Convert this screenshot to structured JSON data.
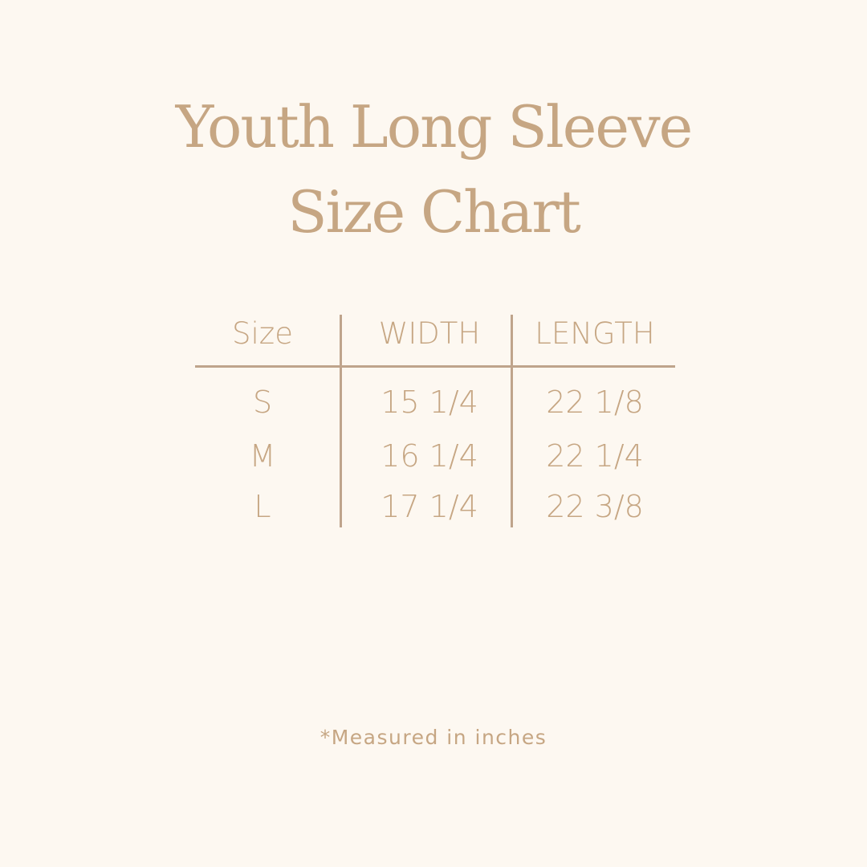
{
  "title": {
    "line1": "Youth Long Sleeve",
    "line2": "Size Chart"
  },
  "table": {
    "headers": [
      "Size",
      "WIDTH",
      "LENGTH"
    ],
    "rows": [
      [
        "S",
        "15 1/4",
        "22 1/8"
      ],
      [
        "M",
        "16 1/4",
        "22 1/4"
      ],
      [
        "L",
        "17 1/4",
        "22 3/8"
      ]
    ]
  },
  "footnote": "*Measured in inches",
  "colors": {
    "background": "#fdf8f1",
    "text": "#c6a683",
    "rule": "#bfa48c"
  }
}
